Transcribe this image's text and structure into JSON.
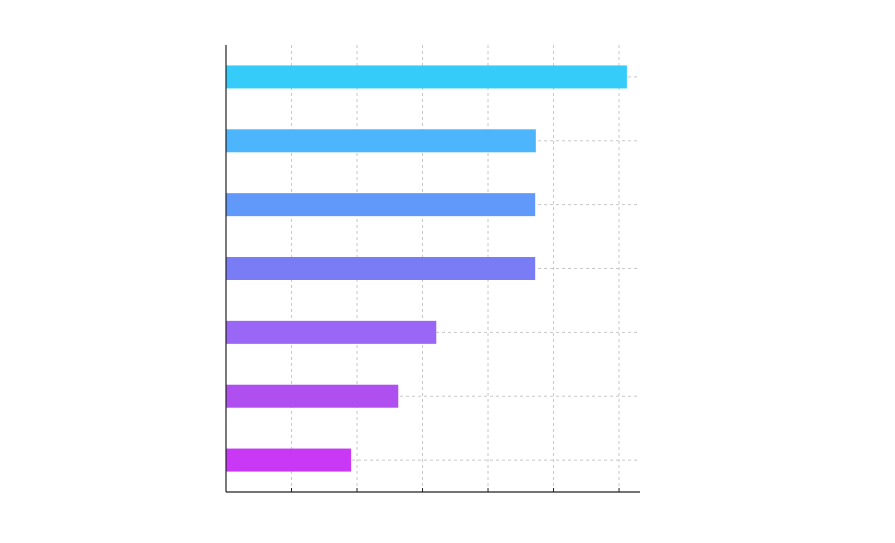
{
  "chart_data": {
    "type": "bar",
    "orientation": "horizontal",
    "categories": [
      null,
      null,
      null,
      null,
      null,
      null,
      null
    ],
    "values": [
      6.12,
      4.73,
      4.72,
      4.72,
      3.21,
      2.63,
      1.91
    ],
    "colors": [
      "#36ccfa",
      "#4db5fb",
      "#6199fb",
      "#7a7cf5",
      "#9a66f5",
      "#b04fef",
      "#c838f5"
    ],
    "xlim": [
      0,
      6.32
    ],
    "xticks": [
      1,
      2,
      3,
      4,
      5,
      6
    ],
    "grid": true
  }
}
